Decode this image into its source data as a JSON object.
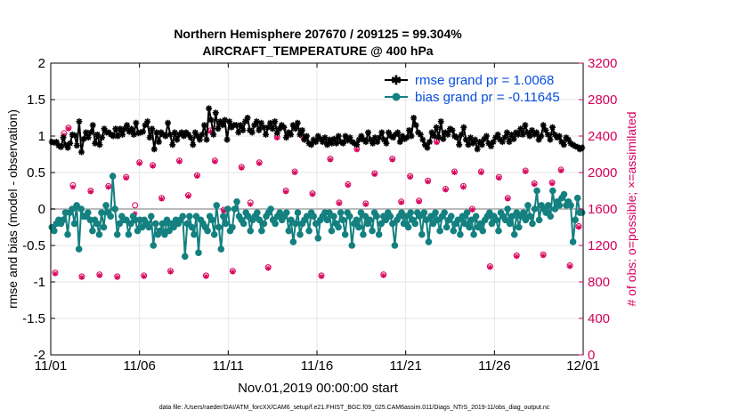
{
  "chart_data": {
    "type": "line",
    "title_line1": "Northern Hemisphere 207670 / 209125 = 99.304%",
    "title_line2": "AIRCRAFT_TEMPERATURE @ 400 hPa",
    "xlabel": "Nov.01,2019 00:00:00 start",
    "ylabel_left": "rmse and bias (model - observation)",
    "ylabel_right": "# of obs: o=possible; ×=assimilated",
    "footer": "data file: /Users/raeder/DAI/ATM_forcXX/CAM6_setup/f.e21.FHIST_BGC.f09_025.CAM6assim.011/Diags_NTrS_2019-11/obs_diag_output.nc",
    "x_ticks": [
      "11/01",
      "11/06",
      "11/11",
      "11/16",
      "11/21",
      "11/26",
      "12/01"
    ],
    "y_left_ticks": [
      "2",
      "1.5",
      "1",
      "0.5",
      "0",
      "-0.5",
      "-1",
      "-1.5",
      "-2"
    ],
    "y_right_ticks": [
      "3200",
      "2800",
      "2400",
      "2000",
      "1600",
      "1200",
      "800",
      "400",
      "0"
    ],
    "ylim_left": [
      -2,
      2
    ],
    "ylim_right": [
      0,
      3200
    ],
    "xlim_days": [
      0,
      30
    ],
    "legend": {
      "rmse_label": "rmse grand pr = 1.0068",
      "bias_label": "bias grand pr = -0.11645"
    },
    "colors": {
      "rmse": "#000000",
      "bias": "#148080",
      "obs": "#d6005a",
      "legend_text": "#0a50e0",
      "zero_line": "#bbbbbb"
    },
    "series": [
      {
        "name": "rmse",
        "values": [
          0.92,
          0.91,
          0.92,
          0.87,
          0.85,
          0.98,
          0.88,
          0.84,
          0.9,
          1.02,
          1.01,
          0.87,
          1.2,
          0.78,
          0.96,
          1.05,
          0.98,
          1.05,
          1.15,
          0.9,
          1.02,
          0.88,
          0.98,
          1.1,
          1.05,
          1.05,
          1.02,
          1.0,
          1.1,
          1.0,
          1.1,
          1.02,
          1.1,
          1.15,
          1.06,
          1.1,
          1.02,
          1.18,
          1.04,
          1.05,
          1.06,
          1.15,
          1.2,
          0.98,
          1.1,
          0.82,
          1.05,
          0.92,
          1.05,
          1.02,
          1.0,
          1.18,
          1.02,
          0.88,
          1.05,
          0.95,
          1.02,
          1.05,
          1.0,
          1.05,
          1.02,
          0.98,
          0.88,
          1.05,
          1.0,
          0.95,
          1.02,
          1.15,
          0.95,
          1.38,
          1.22,
          1.02,
          1.32,
          1.1,
          1.2,
          1.15,
          1.22,
          0.95,
          1.2,
          1.12,
          1.15,
          1.15,
          1.05,
          1.15,
          1.08,
          1.2,
          1.25,
          1.08,
          1.05,
          1.15,
          1.2,
          1.08,
          1.18,
          1.12,
          1.02,
          1.12,
          1.18,
          1.1,
          1.2,
          1.04,
          1.1,
          1.15,
          1.12,
          0.98,
          1.05,
          1.02,
          1.15,
          1.1,
          1.18,
          1.02,
          1.08,
          0.95,
          1.0,
          0.9,
          0.88,
          0.95,
          0.92,
          1.0,
          0.96,
          0.92,
          0.98,
          0.88,
          0.95,
          0.9,
          0.96,
          0.9,
          1.0,
          0.92,
          0.9,
          1.0,
          0.94,
          0.98,
          0.92,
          0.9,
          0.88,
          0.95,
          1.0,
          0.95,
          0.92,
          1.05,
          0.95,
          0.9,
          0.98,
          0.92,
          0.98,
          1.05,
          0.95,
          0.9,
          1.05,
          1.0,
          0.98,
          1.02,
          1.05,
          0.92,
          1.0,
          0.96,
          0.98,
          1.08,
          1.0,
          1.25,
          1.15,
          1.05,
          1.02,
          0.95,
          0.88,
          0.84,
          0.92,
          1.05,
          1.0,
          1.12,
          0.98,
          1.2,
          0.96,
          1.05,
          1.02,
          1.1,
          1.08,
          1.0,
          0.98,
          0.88,
          1.02,
          1.12,
          0.95,
          0.88,
          0.98,
          0.9,
          0.95,
          0.82,
          0.92,
          0.88,
          0.96,
          1.0,
          0.9,
          0.86,
          0.92,
          0.98,
          1.02,
          0.95,
          0.92,
          0.98,
          1.05,
          0.92,
          1.02,
          0.96,
          1.05,
          1.02,
          1.1,
          1.02,
          1.15,
          1.05,
          1.0,
          1.08,
          1.02,
          1.05,
          0.95,
          1.0,
          1.15,
          1.08,
          1.02,
          0.95,
          1.12,
          1.02,
          0.98,
          1.0,
          0.92,
          0.88,
          0.98,
          0.95,
          0.9,
          0.88,
          0.86,
          0.85,
          0.82,
          0.84
        ]
      },
      {
        "name": "bias",
        "values": [
          -0.25,
          -0.3,
          -0.2,
          -0.15,
          -0.2,
          -0.15,
          -0.05,
          -0.35,
          -0.05,
          0.0,
          -0.2,
          0.05,
          -0.55,
          0.0,
          -0.1,
          -0.1,
          -0.05,
          -0.15,
          -0.3,
          -0.15,
          -0.2,
          -0.35,
          -0.05,
          -0.25,
          0.05,
          -0.05,
          -0.1,
          0.45,
          0.0,
          -0.35,
          -0.2,
          -0.1,
          -0.15,
          -0.15,
          -0.35,
          -0.2,
          -0.1,
          -0.15,
          -0.3,
          -0.15,
          -0.25,
          -0.15,
          -0.2,
          -0.25,
          -0.1,
          -0.5,
          -0.2,
          -0.35,
          -0.3,
          -0.2,
          -0.35,
          -0.15,
          -0.3,
          -0.2,
          -0.25,
          -0.15,
          -0.2,
          -0.15,
          -0.1,
          -0.65,
          -0.2,
          -0.1,
          -0.25,
          -0.35,
          -0.1,
          -0.6,
          -0.15,
          -0.2,
          -0.25,
          -0.3,
          -0.1,
          -0.15,
          -0.35,
          0.05,
          -0.25,
          -0.55,
          -0.1,
          -0.2,
          0.0,
          -0.3,
          -0.25,
          0.0,
          0.1,
          -0.1,
          -0.15,
          -0.2,
          -0.05,
          -0.1,
          -0.3,
          -0.15,
          -0.1,
          -0.05,
          -0.15,
          -0.3,
          -0.2,
          -0.1,
          -0.05,
          0.0,
          -0.15,
          -0.2,
          -0.1,
          -0.05,
          -0.15,
          -0.1,
          -0.05,
          -0.3,
          -0.15,
          -0.45,
          -0.2,
          -0.05,
          -0.35,
          -0.2,
          -0.15,
          -0.1,
          -0.3,
          -0.05,
          -0.1,
          -0.2,
          -0.4,
          -0.15,
          -0.1,
          -0.05,
          -0.15,
          -0.05,
          -0.3,
          -0.1,
          -0.2,
          -0.25,
          -0.05,
          -0.15,
          -0.35,
          -0.05,
          -0.1,
          -0.5,
          -0.2,
          -0.15,
          -0.25,
          -0.05,
          -0.35,
          -0.1,
          -0.2,
          -0.15,
          -0.3,
          -0.05,
          -0.1,
          -0.35,
          -0.2,
          -0.1,
          -0.15,
          -0.05,
          -0.1,
          -0.2,
          -0.5,
          -0.15,
          -0.1,
          -0.05,
          -0.2,
          -0.1,
          -0.25,
          -0.05,
          -0.15,
          -0.2,
          -0.05,
          -0.1,
          -0.35,
          -0.05,
          -0.15,
          -0.45,
          -0.1,
          -0.2,
          -0.05,
          -0.15,
          -0.3,
          -0.1,
          -0.05,
          -0.25,
          -0.15,
          -0.1,
          -0.3,
          -0.2,
          -0.15,
          -0.35,
          -0.1,
          -0.2,
          -0.05,
          -0.25,
          -0.15,
          -0.35,
          -0.1,
          -0.25,
          -0.2,
          -0.3,
          -0.15,
          -0.1,
          -0.05,
          -0.2,
          -0.1,
          -0.15,
          -0.3,
          -0.05,
          -0.1,
          -0.15,
          0.0,
          -0.2,
          -0.1,
          -0.35,
          -0.05,
          -0.25,
          -0.1,
          -0.05,
          -0.15,
          0.05,
          -0.1,
          -0.2,
          0.0,
          0.25,
          -0.15,
          0.05,
          0.0,
          -0.05,
          0.05,
          -0.1,
          0.25,
          0.0,
          0.1,
          0.05,
          0.15,
          0.2,
          0.05,
          0.1,
          0.05,
          -0.45,
          -0.15,
          0.15,
          -0.05,
          -0.05
        ]
      }
    ],
    "obs_possible": [
      {
        "x": 0.25,
        "y": 900
      },
      {
        "x": 0.75,
        "y": 2430
      },
      {
        "x": 1.0,
        "y": 2490
      },
      {
        "x": 1.25,
        "y": 1860
      },
      {
        "x": 1.75,
        "y": 860
      },
      {
        "x": 2.25,
        "y": 1800
      },
      {
        "x": 2.75,
        "y": 880
      },
      {
        "x": 3.25,
        "y": 1850
      },
      {
        "x": 3.75,
        "y": 860
      },
      {
        "x": 4.0,
        "y": 2470
      },
      {
        "x": 4.25,
        "y": 1950
      },
      {
        "x": 4.75,
        "y": 1640
      },
      {
        "x": 5.0,
        "y": 2110
      },
      {
        "x": 5.25,
        "y": 870
      },
      {
        "x": 5.75,
        "y": 2080
      },
      {
        "x": 6.25,
        "y": 1720
      },
      {
        "x": 6.75,
        "y": 920
      },
      {
        "x": 7.25,
        "y": 2130
      },
      {
        "x": 7.75,
        "y": 1750
      },
      {
        "x": 8.25,
        "y": 1970
      },
      {
        "x": 8.75,
        "y": 870
      },
      {
        "x": 9.0,
        "y": 2460
      },
      {
        "x": 9.25,
        "y": 2130
      },
      {
        "x": 9.75,
        "y": 1590
      },
      {
        "x": 10.25,
        "y": 920
      },
      {
        "x": 10.75,
        "y": 2060
      },
      {
        "x": 11.25,
        "y": 1670
      },
      {
        "x": 11.75,
        "y": 2110
      },
      {
        "x": 12.25,
        "y": 960
      },
      {
        "x": 12.75,
        "y": 2390
      },
      {
        "x": 13.25,
        "y": 1800
      },
      {
        "x": 13.75,
        "y": 2010
      },
      {
        "x": 14.25,
        "y": 2380
      },
      {
        "x": 14.75,
        "y": 1770
      },
      {
        "x": 15.25,
        "y": 870
      },
      {
        "x": 15.75,
        "y": 2150
      },
      {
        "x": 16.25,
        "y": 1670
      },
      {
        "x": 16.75,
        "y": 1870
      },
      {
        "x": 17.25,
        "y": 2260
      },
      {
        "x": 17.75,
        "y": 1660
      },
      {
        "x": 18.25,
        "y": 1990
      },
      {
        "x": 18.75,
        "y": 880
      },
      {
        "x": 19.25,
        "y": 2150
      },
      {
        "x": 19.75,
        "y": 1680
      },
      {
        "x": 20.25,
        "y": 1960
      },
      {
        "x": 20.75,
        "y": 1690
      },
      {
        "x": 21.25,
        "y": 1910
      },
      {
        "x": 21.75,
        "y": 2340
      },
      {
        "x": 22.25,
        "y": 1820
      },
      {
        "x": 22.75,
        "y": 2010
      },
      {
        "x": 23.25,
        "y": 1850
      },
      {
        "x": 23.75,
        "y": 1600
      },
      {
        "x": 24.25,
        "y": 2010
      },
      {
        "x": 24.75,
        "y": 970
      },
      {
        "x": 25.25,
        "y": 1950
      },
      {
        "x": 25.75,
        "y": 1720
      },
      {
        "x": 26.25,
        "y": 1090
      },
      {
        "x": 26.75,
        "y": 2020
      },
      {
        "x": 27.25,
        "y": 1880
      },
      {
        "x": 27.75,
        "y": 1100
      },
      {
        "x": 28.25,
        "y": 1890
      },
      {
        "x": 28.75,
        "y": 2030
      },
      {
        "x": 29.25,
        "y": 980
      },
      {
        "x": 29.75,
        "y": 1410
      }
    ],
    "obs_assimilated": [
      {
        "x": 0.25,
        "y": 890
      },
      {
        "x": 0.75,
        "y": 2410
      },
      {
        "x": 1.0,
        "y": 2480
      },
      {
        "x": 1.25,
        "y": 1840
      },
      {
        "x": 1.75,
        "y": 850
      },
      {
        "x": 2.25,
        "y": 1790
      },
      {
        "x": 2.75,
        "y": 870
      },
      {
        "x": 3.25,
        "y": 1840
      },
      {
        "x": 3.75,
        "y": 850
      },
      {
        "x": 4.0,
        "y": 2460
      },
      {
        "x": 4.25,
        "y": 1940
      },
      {
        "x": 4.75,
        "y": 1550
      },
      {
        "x": 5.0,
        "y": 2100
      },
      {
        "x": 5.25,
        "y": 860
      },
      {
        "x": 5.75,
        "y": 2070
      },
      {
        "x": 6.25,
        "y": 1710
      },
      {
        "x": 6.75,
        "y": 910
      },
      {
        "x": 7.25,
        "y": 2120
      },
      {
        "x": 7.75,
        "y": 1740
      },
      {
        "x": 8.25,
        "y": 1960
      },
      {
        "x": 8.75,
        "y": 860
      },
      {
        "x": 9.0,
        "y": 2450
      },
      {
        "x": 9.25,
        "y": 2120
      },
      {
        "x": 9.75,
        "y": 1580
      },
      {
        "x": 10.25,
        "y": 910
      },
      {
        "x": 10.75,
        "y": 2050
      },
      {
        "x": 11.25,
        "y": 1650
      },
      {
        "x": 11.75,
        "y": 2100
      },
      {
        "x": 12.25,
        "y": 950
      },
      {
        "x": 12.75,
        "y": 2380
      },
      {
        "x": 13.25,
        "y": 1790
      },
      {
        "x": 13.75,
        "y": 2000
      },
      {
        "x": 14.25,
        "y": 2370
      },
      {
        "x": 14.75,
        "y": 1760
      },
      {
        "x": 15.25,
        "y": 860
      },
      {
        "x": 15.75,
        "y": 2140
      },
      {
        "x": 16.25,
        "y": 1660
      },
      {
        "x": 16.75,
        "y": 1860
      },
      {
        "x": 17.25,
        "y": 2250
      },
      {
        "x": 17.75,
        "y": 1650
      },
      {
        "x": 18.25,
        "y": 1980
      },
      {
        "x": 18.75,
        "y": 870
      },
      {
        "x": 19.25,
        "y": 2140
      },
      {
        "x": 19.75,
        "y": 1670
      },
      {
        "x": 20.25,
        "y": 1950
      },
      {
        "x": 20.75,
        "y": 1680
      },
      {
        "x": 21.25,
        "y": 1900
      },
      {
        "x": 21.75,
        "y": 2330
      },
      {
        "x": 22.25,
        "y": 1810
      },
      {
        "x": 22.75,
        "y": 2000
      },
      {
        "x": 23.25,
        "y": 1840
      },
      {
        "x": 23.75,
        "y": 1590
      },
      {
        "x": 24.25,
        "y": 2000
      },
      {
        "x": 24.75,
        "y": 960
      },
      {
        "x": 25.25,
        "y": 1940
      },
      {
        "x": 25.75,
        "y": 1710
      },
      {
        "x": 26.25,
        "y": 1080
      },
      {
        "x": 26.75,
        "y": 2010
      },
      {
        "x": 27.25,
        "y": 1870
      },
      {
        "x": 27.75,
        "y": 1090
      },
      {
        "x": 28.25,
        "y": 1880
      },
      {
        "x": 28.75,
        "y": 2020
      },
      {
        "x": 29.25,
        "y": 970
      },
      {
        "x": 29.75,
        "y": 1400
      }
    ]
  }
}
